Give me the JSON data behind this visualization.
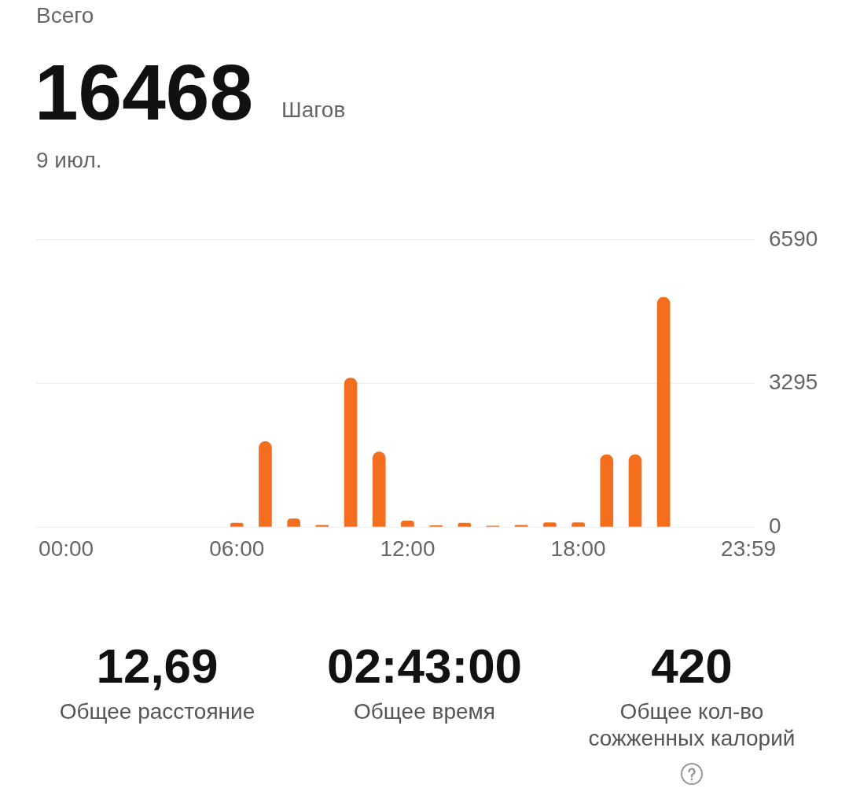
{
  "chart_data": {
    "type": "bar",
    "annotations": [
      "Всего",
      "16468",
      "Шагов",
      "9 июл.",
      "12,69",
      "Общее расстояние",
      "02:43:00",
      "Общее время",
      "420",
      "Общее кол-во сожженных калорий"
    ],
    "x": [
      6,
      7,
      8,
      9,
      10,
      11,
      12,
      13,
      14,
      15,
      16,
      17,
      18,
      19,
      20,
      21
    ],
    "values": [
      90,
      1960,
      190,
      40,
      3420,
      1720,
      140,
      30,
      90,
      20,
      40,
      100,
      100,
      1660,
      1660,
      5270
    ],
    "color": "#f36f1e",
    "xlim": [
      -1.08,
      24.2
    ],
    "xticks": [
      {
        "value": 0,
        "label": "00:00"
      },
      {
        "value": 6,
        "label": "06:00"
      },
      {
        "value": 12,
        "label": "12:00"
      },
      {
        "value": 18,
        "label": "18:00"
      },
      {
        "value": 23.983,
        "label": "23:59"
      }
    ],
    "ylim": [
      0,
      6590
    ],
    "yticks": [
      0,
      3295,
      6590
    ],
    "grid": "y"
  }
}
